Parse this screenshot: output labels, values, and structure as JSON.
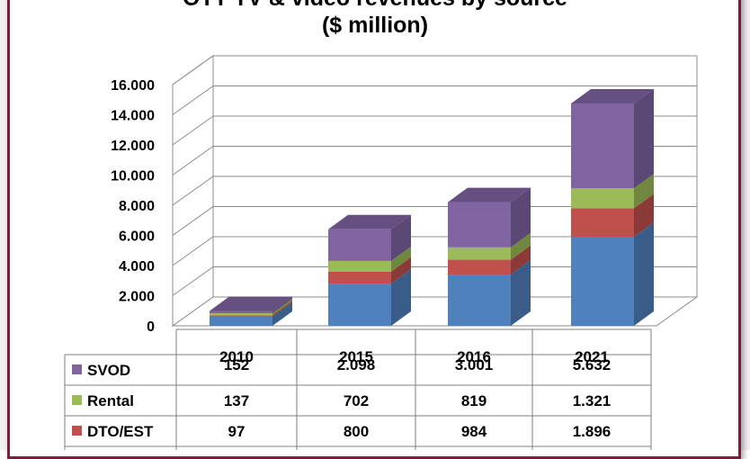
{
  "chart_data": {
    "type": "bar",
    "stacked": true,
    "three_d": true,
    "title": "OTT TV & video revenues by source",
    "subtitle": "($ million)",
    "categories": [
      "2010",
      "2015",
      "2016",
      "2021"
    ],
    "series": [
      {
        "name": "SVOD",
        "color": "#8064a2",
        "values": [
          152,
          2098,
          3001,
          5632
        ],
        "labels": [
          "152",
          "2.098",
          "3.001",
          "5.632"
        ]
      },
      {
        "name": "Rental",
        "color": "#9bbb59",
        "values": [
          137,
          702,
          819,
          1321
        ],
        "labels": [
          "137",
          "702",
          "819",
          "1.321"
        ]
      },
      {
        "name": "DTO/EST",
        "color": "#c0504d",
        "values": [
          97,
          800,
          984,
          1896
        ],
        "labels": [
          "97",
          "800",
          "984",
          "1.896"
        ]
      },
      {
        "name": "",
        "color": "#4f81bd",
        "values": [
          600,
          2800,
          3400,
          5900
        ],
        "labels": [
          "",
          "",
          "",
          ""
        ]
      }
    ],
    "yticks": [
      "0",
      "2.000",
      "4.000",
      "6.000",
      "8.000",
      "10.000",
      "12.000",
      "14.000",
      "16.000"
    ],
    "ylim": [
      0,
      16000
    ],
    "grid": true,
    "legend": "data-table"
  }
}
